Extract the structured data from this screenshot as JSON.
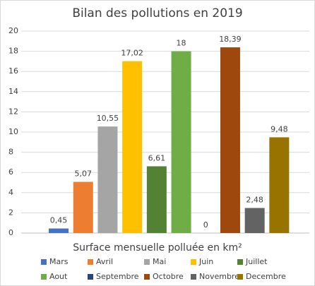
{
  "chart_data": {
    "type": "bar",
    "title": "Bilan des pollutions en 2019",
    "x_label": "Surface mensuelle polluée en km²",
    "categories": [
      "Mars",
      "Avril",
      "Mai",
      "Juin",
      "Juillet",
      "Aout",
      "Septembre",
      "Octobre",
      "Novembre",
      "Decembre"
    ],
    "values": [
      0.45,
      5.07,
      10.55,
      17.02,
      6.61,
      18,
      0,
      18.39,
      2.48,
      9.48
    ],
    "value_labels": [
      "0,45",
      "5,07",
      "10,55",
      "17,02",
      "6,61",
      "18",
      "0",
      "18,39",
      "2,48",
      "9,48"
    ],
    "colors": [
      "#4472c4",
      "#ed7d31",
      "#a5a5a5",
      "#ffc000",
      "#548235",
      "#70ad47",
      "#264478",
      "#9e480e",
      "#636363",
      "#997300"
    ],
    "ylim": [
      0,
      20
    ],
    "yticks": [
      0,
      2,
      4,
      6,
      8,
      10,
      12,
      14,
      16,
      18,
      20
    ],
    "grid": true,
    "legend": "bottom"
  }
}
